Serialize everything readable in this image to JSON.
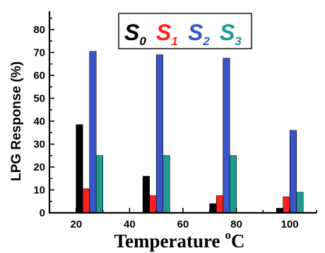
{
  "chart_data": {
    "type": "bar",
    "title": "",
    "xlabel": "Temperature",
    "xlabel_unit_sup": "o",
    "xlabel_unit": "C",
    "ylabel": "LPG Response (%)",
    "xlim": [
      10,
      110
    ],
    "ylim": [
      0,
      88
    ],
    "x_ticks": [
      "20",
      "40",
      "60",
      "80",
      "100"
    ],
    "x_tick_values": [
      20,
      40,
      60,
      80,
      100
    ],
    "y_ticks": [
      "0",
      "10",
      "20",
      "30",
      "40",
      "50",
      "60",
      "70",
      "80"
    ],
    "y_tick_values": [
      0,
      10,
      20,
      30,
      40,
      50,
      60,
      70,
      80
    ],
    "categories": [
      25,
      50,
      75,
      100
    ],
    "series": [
      {
        "name": "S",
        "sub": "0",
        "color": "#000000",
        "values": [
          38.5,
          16,
          4,
          2
        ]
      },
      {
        "name": "S",
        "sub": "1",
        "color": "#ff2020",
        "values": [
          10.5,
          7.5,
          7.5,
          7
        ]
      },
      {
        "name": "S",
        "sub": "2",
        "color": "#3a55c8",
        "values": [
          70.5,
          69,
          67.5,
          36
        ]
      },
      {
        "name": "S",
        "sub": "3",
        "color": "#1e9a92",
        "values": [
          25,
          25,
          25,
          9
        ]
      }
    ],
    "legend_placement": "top-center",
    "grid": false
  }
}
